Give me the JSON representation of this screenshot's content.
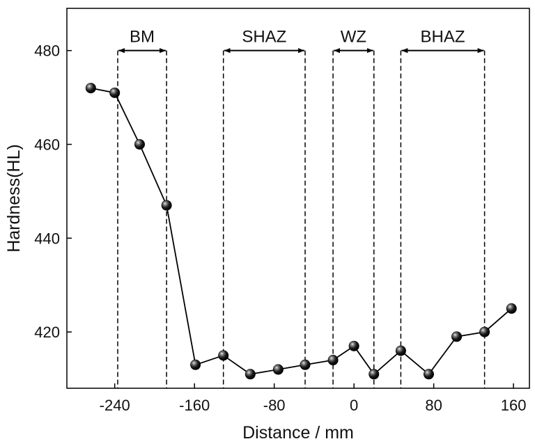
{
  "chart_data": {
    "type": "line",
    "title": "",
    "xlabel": "Distance / mm",
    "ylabel": "Hardness(HL)",
    "xlim": [
      -288,
      176
    ],
    "ylim": [
      408,
      489
    ],
    "xticks": [
      -240,
      -160,
      -80,
      0,
      80,
      160
    ],
    "yticks": [
      420,
      440,
      460,
      480
    ],
    "xtick_labels": [
      "-240",
      "-160",
      "-80",
      "0",
      "80",
      "160"
    ],
    "ytick_labels": [
      "420",
      "440",
      "460",
      "480"
    ],
    "grid": false,
    "legend": "none",
    "series": [
      {
        "marker": "sphere",
        "color": "#000000",
        "x": [
          -264,
          -240,
          -215,
          -188,
          -159,
          -131,
          -104,
          -76,
          -49,
          -21,
          0,
          20,
          47,
          75,
          103,
          131,
          158
        ],
        "y": [
          472,
          471,
          460,
          447,
          413,
          415,
          411,
          412,
          413,
          414,
          417,
          411,
          416,
          411,
          419,
          420,
          425
        ]
      }
    ],
    "zones": [
      {
        "label": "BM",
        "x_start": -237,
        "x_end": -188
      },
      {
        "label": "SHAZ",
        "x_start": -131,
        "x_end": -49
      },
      {
        "label": "WZ",
        "x_start": -21,
        "x_end": 20
      },
      {
        "label": "BHAZ",
        "x_start": 47,
        "x_end": 131
      }
    ],
    "zone_arrow_y": 480
  }
}
